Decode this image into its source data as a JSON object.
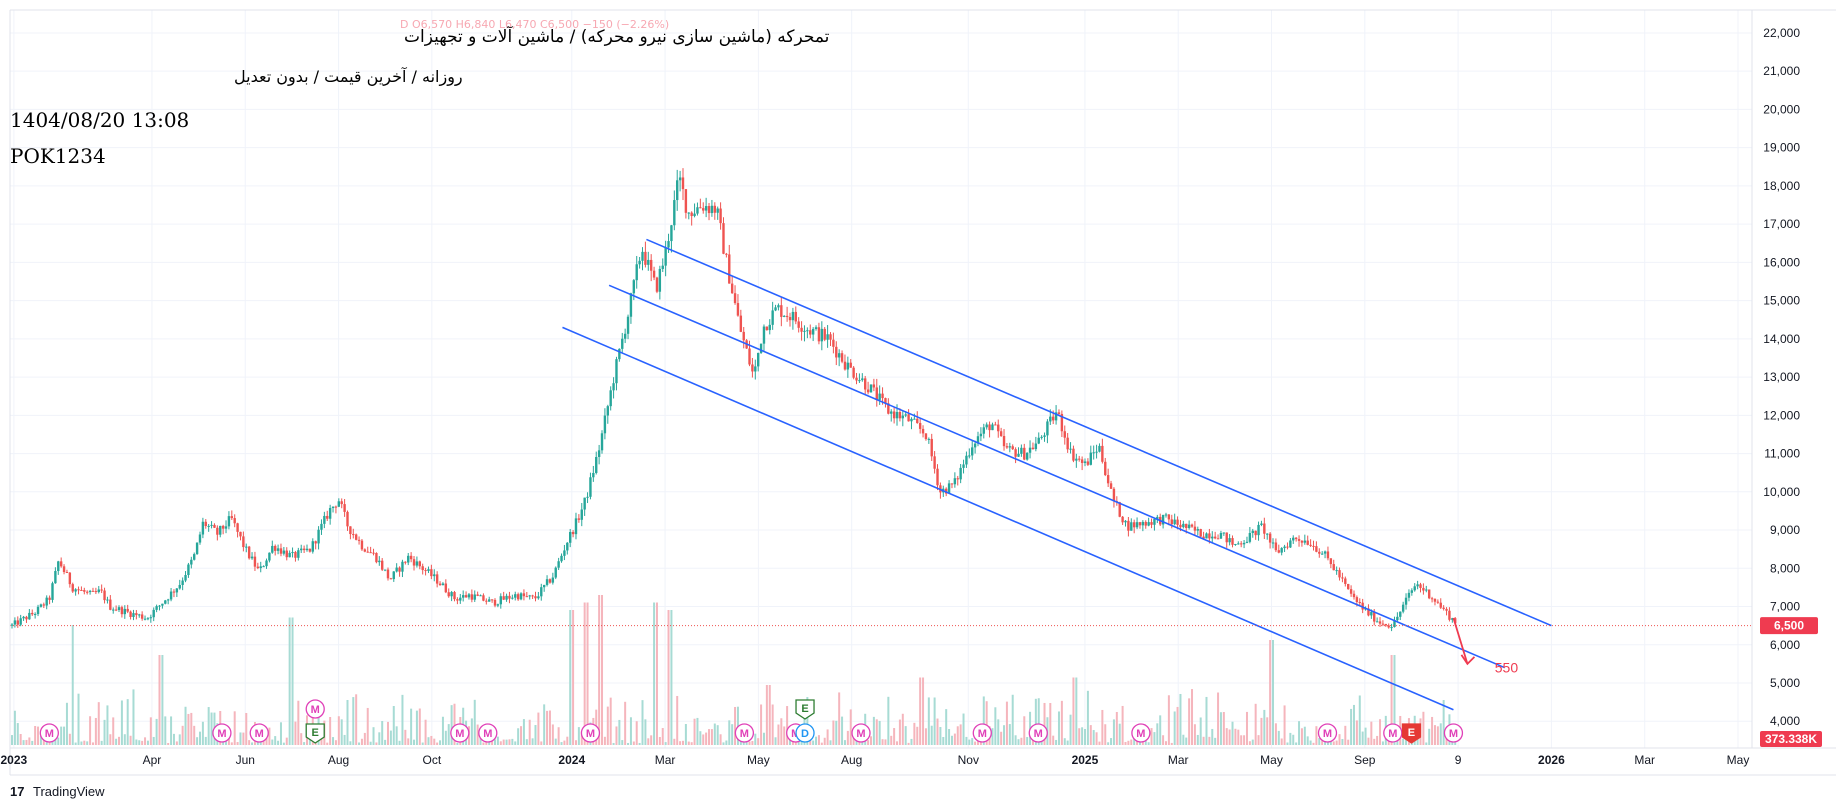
{
  "header": {
    "ohlc_line": "D  O6,570  H6,840  L6,470  C6,500  −150 (−2.26%)",
    "symbol_title": "تمحرکه (ماشین سازی نیرو محرکه) / ماشین آلات و تجهیزات",
    "price_type": "روزانه / آخرین قیمت / بدون تعدیل",
    "datetime": "1404/08/20 13:08",
    "code": "POK1234"
  },
  "branding": {
    "label": "TradingView"
  },
  "chart_data": {
    "type": "candlestick",
    "interval": "Daily",
    "y_axis": {
      "range": [
        3300,
        22600
      ],
      "ticks": [
        "22,000",
        "21,000",
        "20,000",
        "19,000",
        "18,000",
        "17,000",
        "16,000",
        "15,000",
        "14,000",
        "13,000",
        "12,000",
        "11,000",
        "10,000",
        "9,000",
        "8,000",
        "7,000",
        "6,000",
        "5,000",
        "4,000"
      ],
      "tick_values": [
        22000,
        21000,
        20000,
        19000,
        18000,
        17000,
        16000,
        15000,
        14000,
        13000,
        12000,
        11000,
        10000,
        9000,
        8000,
        7000,
        6000,
        5000,
        4000
      ]
    },
    "x_axis": {
      "labels": [
        {
          "text": "2023",
          "bold": true,
          "t": 0.04
        },
        {
          "text": "Apr",
          "bold": false,
          "t": 3.0
        },
        {
          "text": "Jun",
          "bold": false,
          "t": 5.0
        },
        {
          "text": "Aug",
          "bold": false,
          "t": 7.0
        },
        {
          "text": "Oct",
          "bold": false,
          "t": 9.0
        },
        {
          "text": "2024",
          "bold": true,
          "t": 12.0
        },
        {
          "text": "Mar",
          "bold": false,
          "t": 14.0
        },
        {
          "text": "May",
          "bold": false,
          "t": 16.0
        },
        {
          "text": "Aug",
          "bold": false,
          "t": 18.0
        },
        {
          "text": "Nov",
          "bold": false,
          "t": 20.5
        },
        {
          "text": "2025",
          "bold": true,
          "t": 23.0
        },
        {
          "text": "Mar",
          "bold": false,
          "t": 25.0
        },
        {
          "text": "May",
          "bold": false,
          "t": 27.0
        },
        {
          "text": "Sep",
          "bold": false,
          "t": 29.0
        },
        {
          "text": "9",
          "bold": false,
          "t": 31.0
        },
        {
          "text": "2026",
          "bold": true,
          "t": 33.0
        },
        {
          "text": "Mar",
          "bold": false,
          "t": 35.0
        },
        {
          "text": "May",
          "bold": false,
          "t": 37.0
        }
      ]
    },
    "price_path": [
      [
        0.0,
        6500
      ],
      [
        0.5,
        6850
      ],
      [
        0.8,
        7200
      ],
      [
        1.0,
        8200
      ],
      [
        1.3,
        7500
      ],
      [
        1.7,
        7300
      ],
      [
        1.9,
        7400
      ],
      [
        2.1,
        7000
      ],
      [
        2.6,
        6800
      ],
      [
        2.9,
        6700
      ],
      [
        3.3,
        7200
      ],
      [
        3.6,
        7600
      ],
      [
        3.9,
        8300
      ],
      [
        4.1,
        9200
      ],
      [
        4.4,
        8900
      ],
      [
        4.7,
        9300
      ],
      [
        5.0,
        8500
      ],
      [
        5.3,
        7900
      ],
      [
        5.6,
        8600
      ],
      [
        6.0,
        8300
      ],
      [
        6.4,
        8500
      ],
      [
        6.8,
        9500
      ],
      [
        7.0,
        9800
      ],
      [
        7.2,
        9100
      ],
      [
        7.5,
        8600
      ],
      [
        7.8,
        8300
      ],
      [
        8.1,
        7700
      ],
      [
        8.5,
        8300
      ],
      [
        8.8,
        8000
      ],
      [
        9.1,
        7700
      ],
      [
        9.5,
        7200
      ],
      [
        9.8,
        7300
      ],
      [
        10.3,
        7100
      ],
      [
        10.8,
        7300
      ],
      [
        11.2,
        7200
      ],
      [
        11.6,
        7800
      ],
      [
        11.9,
        8700
      ],
      [
        12.1,
        9200
      ],
      [
        12.3,
        9800
      ],
      [
        12.6,
        11200
      ],
      [
        12.9,
        13000
      ],
      [
        13.2,
        14600
      ],
      [
        13.5,
        16400
      ],
      [
        13.8,
        15300
      ],
      [
        14.0,
        16200
      ],
      [
        14.3,
        18200
      ],
      [
        14.5,
        17300
      ],
      [
        14.8,
        17500
      ],
      [
        15.1,
        17400
      ],
      [
        15.3,
        16100
      ],
      [
        15.6,
        14300
      ],
      [
        15.9,
        13000
      ],
      [
        16.1,
        14300
      ],
      [
        16.4,
        14800
      ],
      [
        16.7,
        14600
      ],
      [
        17.0,
        14300
      ],
      [
        17.5,
        14000
      ],
      [
        17.9,
        13300
      ],
      [
        18.4,
        12700
      ],
      [
        18.8,
        12100
      ],
      [
        19.2,
        11900
      ],
      [
        19.6,
        11500
      ],
      [
        19.9,
        10000
      ],
      [
        20.2,
        10200
      ],
      [
        20.6,
        11300
      ],
      [
        21.0,
        11800
      ],
      [
        21.3,
        11100
      ],
      [
        21.7,
        11000
      ],
      [
        22.0,
        11300
      ],
      [
        22.4,
        12100
      ],
      [
        22.7,
        11000
      ],
      [
        23.0,
        10700
      ],
      [
        23.3,
        11200
      ],
      [
        23.6,
        9800
      ],
      [
        23.9,
        9100
      ],
      [
        24.3,
        9200
      ],
      [
        24.7,
        9300
      ],
      [
        25.1,
        9100
      ],
      [
        25.5,
        8900
      ],
      [
        25.9,
        8900
      ],
      [
        26.2,
        8600
      ],
      [
        26.5,
        8800
      ],
      [
        26.8,
        9100
      ],
      [
        27.1,
        8400
      ],
      [
        27.5,
        8800
      ],
      [
        27.8,
        8700
      ],
      [
        28.1,
        8400
      ],
      [
        28.4,
        7900
      ],
      [
        28.7,
        7300
      ],
      [
        29.0,
        6900
      ],
      [
        29.3,
        6600
      ],
      [
        29.6,
        6500
      ],
      [
        29.9,
        7200
      ],
      [
        30.1,
        7600
      ],
      [
        30.4,
        7300
      ],
      [
        30.7,
        6900
      ],
      [
        31.0,
        6500
      ]
    ],
    "volume_bars": 500,
    "volume_spikes": [
      [
        1.3,
        0.8
      ],
      [
        3.2,
        0.6
      ],
      [
        6.0,
        0.85
      ],
      [
        12.0,
        0.9
      ],
      [
        12.3,
        0.95
      ],
      [
        12.6,
        1.0
      ],
      [
        13.8,
        0.95
      ],
      [
        14.1,
        0.9
      ],
      [
        16.2,
        0.4
      ],
      [
        19.5,
        0.45
      ],
      [
        22.8,
        0.45
      ],
      [
        27.0,
        0.7
      ],
      [
        29.6,
        0.6
      ]
    ],
    "channel_lines": [
      {
        "name": "upper",
        "from": [
          13.6,
          16600
        ],
        "to": [
          33.0,
          6500
        ]
      },
      {
        "name": "middle",
        "from": [
          12.8,
          15400
        ],
        "to": [
          32.0,
          5400
        ]
      },
      {
        "name": "lower",
        "from": [
          11.8,
          14300
        ],
        "to": [
          30.9,
          4300
        ]
      }
    ],
    "arrow": {
      "from": [
        30.9,
        6700
      ],
      "to": [
        31.2,
        5500
      ]
    },
    "annotation": {
      "text": "550",
      "t": 32.0,
      "v": 5400
    },
    "last_price": {
      "label": "6,500",
      "value": 6500
    },
    "volume_label": {
      "label": "373.338K"
    },
    "events": [
      {
        "kind": "M",
        "t": 0.8,
        "row": 0
      },
      {
        "kind": "M",
        "t": 4.5,
        "row": 0
      },
      {
        "kind": "M",
        "t": 5.3,
        "row": 0
      },
      {
        "kind": "M",
        "t": 6.5,
        "row": 1
      },
      {
        "kind": "E",
        "t": 6.5,
        "row": 0
      },
      {
        "kind": "M",
        "t": 9.6,
        "row": 0
      },
      {
        "kind": "M",
        "t": 10.2,
        "row": 0
      },
      {
        "kind": "M",
        "t": 12.4,
        "row": 0
      },
      {
        "kind": "M",
        "t": 15.7,
        "row": 0
      },
      {
        "kind": "M",
        "t": 16.8,
        "row": 0
      },
      {
        "kind": "D",
        "t": 17.0,
        "row": 0
      },
      {
        "kind": "E",
        "t": 17.0,
        "row": 1
      },
      {
        "kind": "M",
        "t": 18.2,
        "row": 0
      },
      {
        "kind": "M",
        "t": 20.8,
        "row": 0
      },
      {
        "kind": "M",
        "t": 22.0,
        "row": 0
      },
      {
        "kind": "M",
        "t": 24.2,
        "row": 0
      },
      {
        "kind": "M",
        "t": 28.2,
        "row": 0
      },
      {
        "kind": "M",
        "t": 29.6,
        "row": 0
      },
      {
        "kind": "Ered",
        "t": 30.0,
        "row": 0
      },
      {
        "kind": "M",
        "t": 30.9,
        "row": 0
      }
    ],
    "colors": {
      "up": "#26a69a",
      "down": "#ef5350",
      "channel": "#2962ff",
      "arrow": "#ef3b50",
      "event_m": "#e040b8",
      "event_e": "#2e7d32",
      "event_d": "#2196f3",
      "event_ered": "#e53935"
    }
  }
}
